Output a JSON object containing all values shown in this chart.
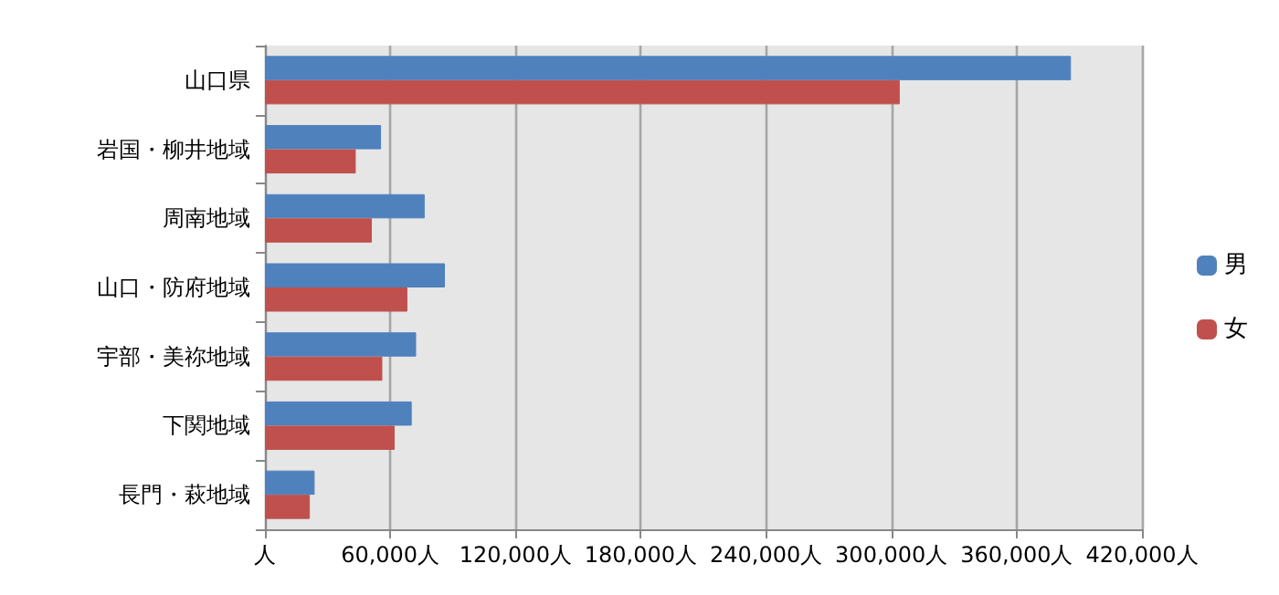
{
  "chart_data": {
    "type": "bar",
    "orientation": "horizontal",
    "categories": [
      "山口県",
      "岩国・柳井地域",
      "周南地域",
      "山口・防府地域",
      "宇部・美祢地域",
      "下関地域",
      "長門・萩地域"
    ],
    "series": [
      {
        "name": "男",
        "color": "#4f81bd",
        "values": [
          386000,
          55600,
          76500,
          86200,
          72400,
          70300,
          23800
        ]
      },
      {
        "name": "女",
        "color": "#c0504d",
        "values": [
          304000,
          43500,
          51200,
          68200,
          56200,
          62100,
          21500
        ]
      }
    ],
    "xlim": [
      0,
      420000
    ],
    "xticks": [
      {
        "value": 0,
        "label": "人"
      },
      {
        "value": 60000,
        "label": "60,000人"
      },
      {
        "value": 120000,
        "label": "120,000人"
      },
      {
        "value": 180000,
        "label": "180,000人"
      },
      {
        "value": 240000,
        "label": "240,000人"
      },
      {
        "value": 300000,
        "label": "300,000人"
      },
      {
        "value": 360000,
        "label": "360,000人"
      },
      {
        "value": 420000,
        "label": "420,000人"
      }
    ],
    "grid": "x",
    "legend": "right"
  }
}
